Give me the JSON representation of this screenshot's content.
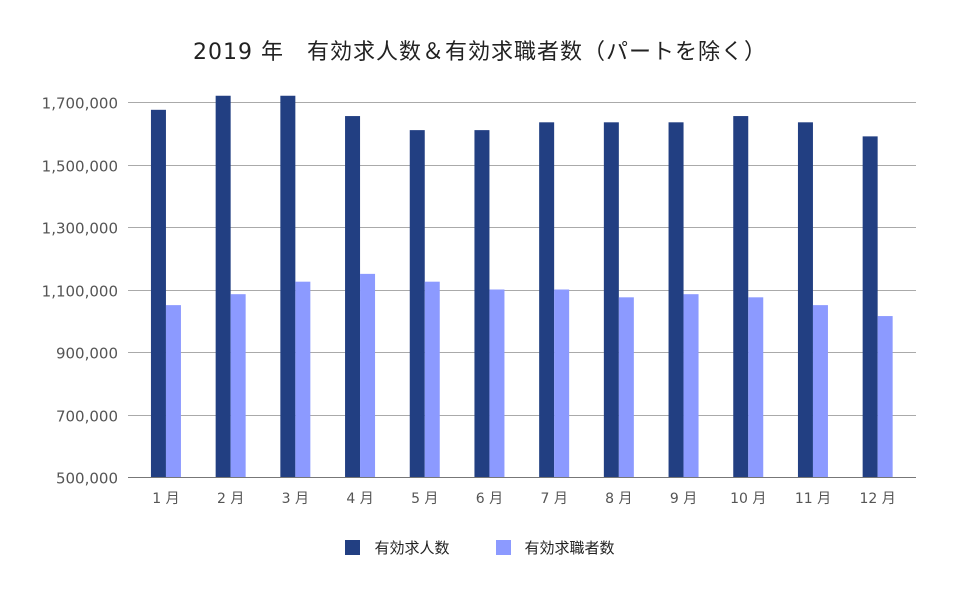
{
  "chart_data": {
    "type": "bar",
    "title": "2019 年　有効求人数＆有効求職者数（パートを除く）",
    "xlabel": "",
    "ylabel": "",
    "ylim": [
      500000,
      1700000
    ],
    "yticks": [
      500000,
      700000,
      900000,
      1100000,
      1300000,
      1500000,
      1700000
    ],
    "ytick_labels": [
      "500,000",
      "700,000",
      "900,000",
      "1,100,000",
      "1,300,000",
      "1,500,000",
      "1,700,000"
    ],
    "grid": true,
    "legend_position": "bottom",
    "categories": [
      "1 月",
      "2 月",
      "3 月",
      "4 月",
      "5 月",
      "6 月",
      "7 月",
      "8 月",
      "9 月",
      "10 月",
      "11 月",
      "12 月"
    ],
    "series": [
      {
        "name": "有効求人数",
        "color": "#223f82",
        "values": [
          1675000,
          1720000,
          1720000,
          1655000,
          1610000,
          1610000,
          1635000,
          1635000,
          1635000,
          1655000,
          1635000,
          1590000
        ]
      },
      {
        "name": "有効求職者数",
        "color": "#8c9aff",
        "values": [
          1050000,
          1085000,
          1125000,
          1150000,
          1125000,
          1100000,
          1100000,
          1075000,
          1085000,
          1075000,
          1050000,
          1015000
        ]
      }
    ]
  }
}
